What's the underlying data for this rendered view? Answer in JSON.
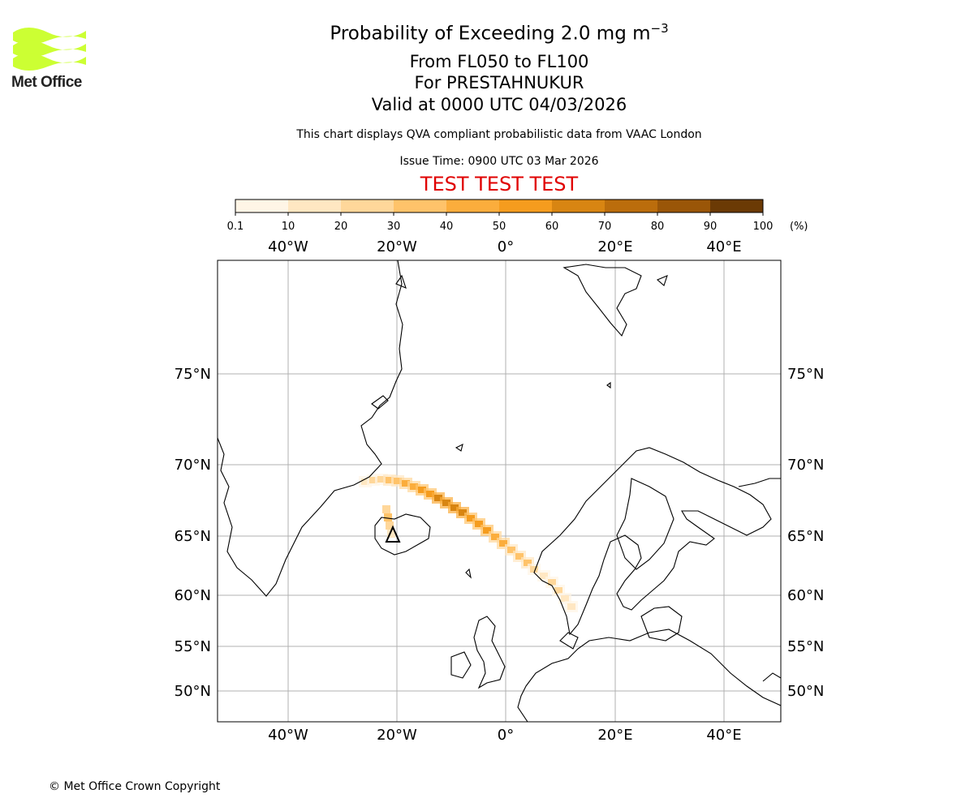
{
  "logo": {
    "text": "Met Office",
    "color": "#ccff33"
  },
  "header": {
    "title_main": "Probability of Exceeding 2.0 mg m",
    "title_exp": "−3",
    "levels": "From FL050 to FL100",
    "volcano": "For PRESTAHNUKUR",
    "valid": "Valid at 0000 UTC 04/03/2026",
    "disclaimer": "This chart displays QVA compliant probabilistic data from VAAC London",
    "issue": "Issue Time: 0900 UTC 03 Mar 2026",
    "test_banner": "TEST TEST TEST",
    "test_color": "#e00000"
  },
  "colorbar": {
    "ticks": [
      "0.1",
      "10",
      "20",
      "30",
      "40",
      "50",
      "60",
      "70",
      "80",
      "90",
      "100"
    ],
    "unit": "(%)",
    "colors": [
      "#fff5e6",
      "#ffe7c2",
      "#ffd79a",
      "#ffc36a",
      "#fbad3c",
      "#f59c1e",
      "#d88512",
      "#bb6d0c",
      "#9a5608",
      "#6b3a05"
    ]
  },
  "map": {
    "lon_labels": [
      "40°W",
      "20°W",
      "0°",
      "20°E",
      "40°E"
    ],
    "lat_labels": [
      "75°N",
      "70°N",
      "65°N",
      "60°N",
      "55°N",
      "50°N"
    ],
    "volcano_marker": "volcano-triangle"
  },
  "footer": {
    "copyright": "© Met Office Crown Copyright"
  }
}
